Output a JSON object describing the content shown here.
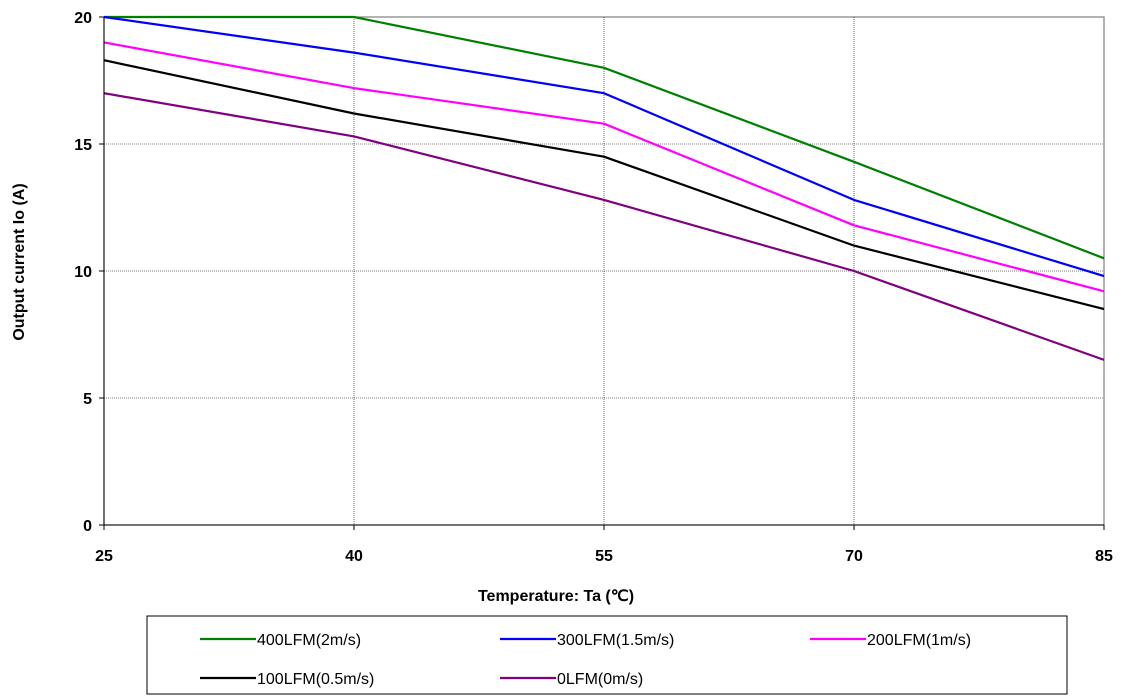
{
  "chart_data": {
    "type": "line",
    "x": [
      25,
      40,
      55,
      70,
      85
    ],
    "xlabel": "Temperature:  Ta (℃)",
    "ylabel": "Output current   Io (A)",
    "xlim": [
      25,
      85
    ],
    "ylim": [
      0,
      20
    ],
    "x_ticks": [
      "25",
      "40",
      "55",
      "70",
      "85"
    ],
    "y_ticks": [
      "0",
      "5",
      "10",
      "15",
      "20"
    ],
    "grid": true,
    "legend_position": "bottom",
    "series": [
      {
        "name": "400LFM(2m/s)",
        "color": "#008000",
        "values": [
          20,
          20,
          18,
          14.3,
          10.5
        ]
      },
      {
        "name": "300LFM(1.5m/s)",
        "color": "#0000ff",
        "values": [
          20,
          18.6,
          17,
          12.8,
          9.8
        ]
      },
      {
        "name": "200LFM(1m/s)",
        "color": "#ff00ff",
        "values": [
          19,
          17.2,
          15.8,
          11.8,
          9.2
        ]
      },
      {
        "name": "100LFM(0.5m/s)",
        "color": "#000000",
        "values": [
          18.3,
          16.2,
          14.5,
          11,
          8.5
        ]
      },
      {
        "name": "0LFM(0m/s)",
        "color": "#800080",
        "values": [
          17,
          15.3,
          12.8,
          10,
          6.5
        ]
      }
    ]
  }
}
